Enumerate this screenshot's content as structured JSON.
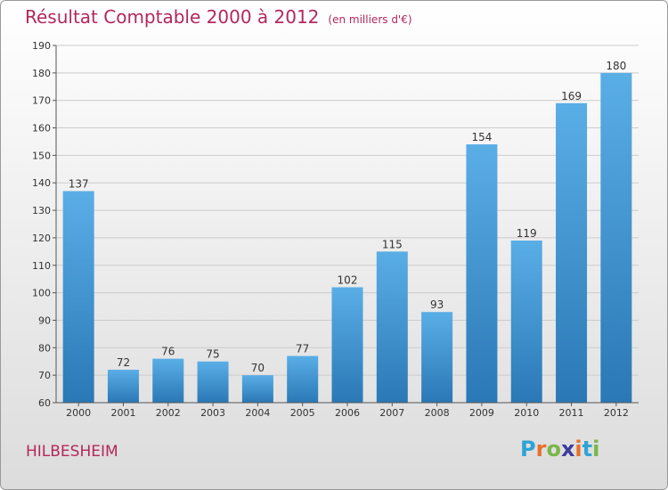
{
  "title": "Résultat Comptable 2000 à 2012",
  "subtitle": "(en milliers d'€)",
  "location": "HILBESHEIM",
  "logo": {
    "letters": [
      "P",
      "r",
      "o",
      "x",
      "i",
      "t",
      "i"
    ],
    "colors": [
      "#2ea3d6",
      "#e8702a",
      "#7ab648",
      "#3d3d9e",
      "#e8702a",
      "#2ea3d6",
      "#7ab648"
    ]
  },
  "colors": {
    "title": "#b3285b",
    "bar_top": "#5aaee6",
    "bar_bottom": "#2a78b6",
    "grid": "#cccccc"
  },
  "chart_data": {
    "type": "bar",
    "categories": [
      "2000",
      "2001",
      "2002",
      "2003",
      "2004",
      "2005",
      "2006",
      "2007",
      "2008",
      "2009",
      "2010",
      "2011",
      "2012"
    ],
    "values": [
      137,
      72,
      76,
      75,
      70,
      77,
      102,
      115,
      93,
      154,
      119,
      169,
      180
    ],
    "title": "Résultat Comptable 2000 à 2012",
    "ylim": [
      60,
      190
    ],
    "yticks": [
      60,
      70,
      80,
      90,
      100,
      110,
      120,
      130,
      140,
      150,
      160,
      170,
      180,
      190
    ],
    "grid": true
  }
}
